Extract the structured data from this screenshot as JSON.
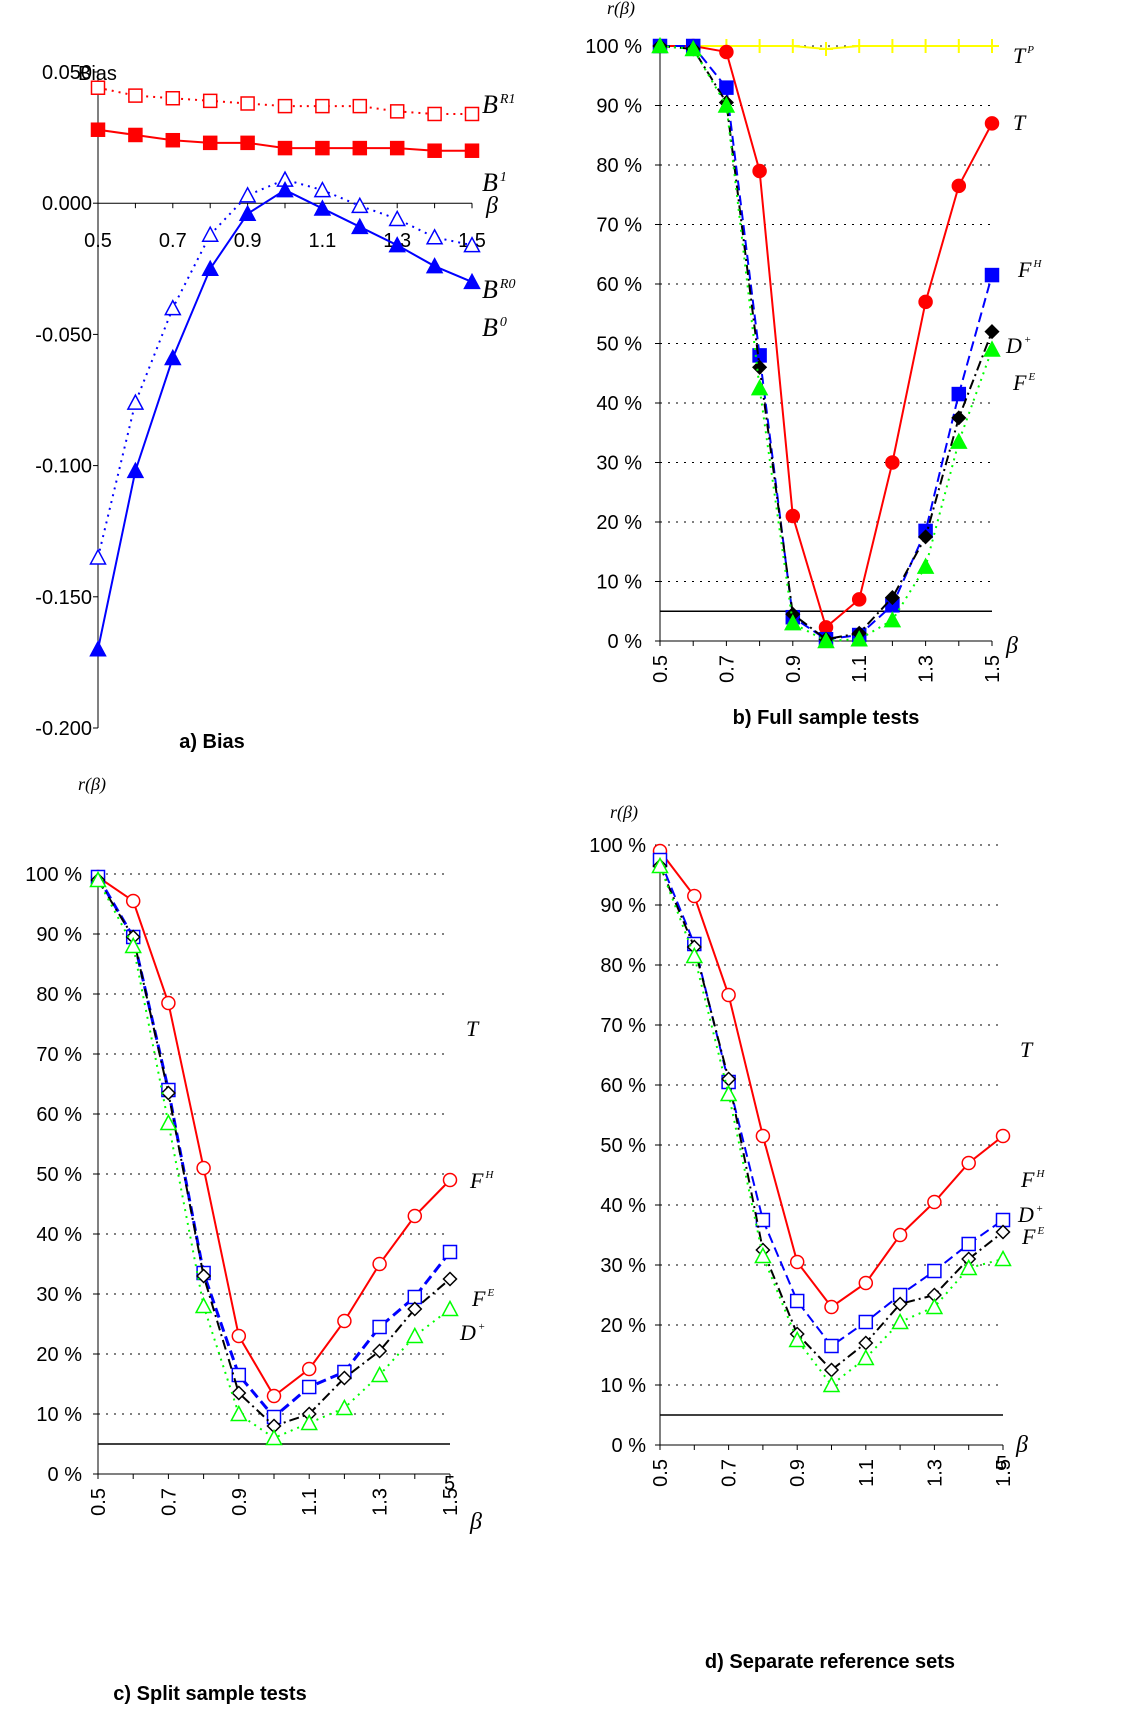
{
  "chart_data": [
    {
      "type": "line",
      "panel": "a",
      "caption": "a) Bias",
      "ylabel": "Bias",
      "xlabel": "β",
      "x": [
        0.5,
        0.6,
        0.7,
        0.8,
        0.9,
        1.0,
        1.1,
        1.2,
        1.3,
        1.4,
        1.5
      ],
      "x_tick_labels": [
        "0.5",
        "0.7",
        "0.9",
        "1.1",
        "1.3",
        "1.5"
      ],
      "x_tick_values": [
        0.5,
        0.7,
        0.9,
        1.1,
        1.3,
        1.5
      ],
      "y_tick_labels": [
        "0.050",
        "0.000",
        "-0.050",
        "-0.100",
        "-0.150",
        "-0.200"
      ],
      "y_tick_values": [
        0.05,
        0.0,
        -0.05,
        -0.1,
        -0.15,
        -0.2
      ],
      "xlim": [
        0.5,
        1.5
      ],
      "ylim": [
        -0.2,
        0.05
      ],
      "grid": false,
      "reference_lines": [],
      "series": [
        {
          "name": "B^R1",
          "label_main": "B",
          "label_sup": "R1",
          "color": "#ff0000",
          "marker": "square-open",
          "dash": "dotted",
          "values": [
            0.044,
            0.041,
            0.04,
            0.039,
            0.038,
            0.037,
            0.037,
            0.037,
            0.035,
            0.034,
            0.034
          ]
        },
        {
          "name": "B^1",
          "label_main": "B",
          "label_sup": "1",
          "color": "#ff0000",
          "marker": "square",
          "dash": "solid",
          "values": [
            0.028,
            0.026,
            0.024,
            0.023,
            0.023,
            0.021,
            0.021,
            0.021,
            0.021,
            0.02,
            0.02
          ]
        },
        {
          "name": "B^R0",
          "label_main": "B",
          "label_sup": "R0",
          "color": "#0000ff",
          "marker": "triangle-open",
          "dash": "dotted",
          "values": [
            -0.135,
            -0.076,
            -0.04,
            -0.012,
            0.003,
            0.009,
            0.005,
            -0.001,
            -0.006,
            -0.013,
            -0.016
          ]
        },
        {
          "name": "B^0",
          "label_main": "B",
          "label_sup": "0",
          "color": "#0000ff",
          "marker": "triangle",
          "dash": "solid",
          "values": [
            -0.17,
            -0.102,
            -0.059,
            -0.025,
            -0.004,
            0.005,
            -0.002,
            -0.009,
            -0.016,
            -0.024,
            -0.03
          ]
        }
      ]
    },
    {
      "type": "line",
      "panel": "b",
      "caption": "b) Full sample tests",
      "ylabel": "r(β)",
      "xlabel": "β",
      "x": [
        0.5,
        0.6,
        0.7,
        0.8,
        0.9,
        1.0,
        1.1,
        1.2,
        1.3,
        1.4,
        1.5
      ],
      "x_tick_labels": [
        "0.5",
        "0.7",
        "0.9",
        "1.1",
        "1.3",
        "1.5"
      ],
      "x_tick_values": [
        0.5,
        0.7,
        0.9,
        1.1,
        1.3,
        1.5
      ],
      "y_tick_labels": [
        "100 %",
        "90 %",
        "80 %",
        "70 %",
        "60 %",
        "50 %",
        "40 %",
        "30 %",
        "20 %",
        "10 %",
        "0 %"
      ],
      "y_tick_values": [
        100,
        90,
        80,
        70,
        60,
        50,
        40,
        30,
        20,
        10,
        0
      ],
      "xlim": [
        0.5,
        1.5
      ],
      "ylim": [
        0,
        100
      ],
      "grid": true,
      "reference_lines": [
        5
      ],
      "series": [
        {
          "name": "T^P",
          "label_main": "T",
          "label_sup": "P",
          "color": "#ffff00",
          "marker": "plus",
          "dash": "solid",
          "values": [
            100,
            100,
            100,
            100,
            100,
            99.5,
            100,
            100,
            100,
            100,
            100
          ]
        },
        {
          "name": "T",
          "label_main": "T",
          "label_sup": "",
          "color": "#ff0000",
          "marker": "circle",
          "dash": "solid",
          "values": [
            100,
            100,
            99,
            79,
            21,
            2.3,
            7,
            30,
            57,
            76.5,
            87
          ]
        },
        {
          "name": "F^H",
          "label_main": "F",
          "label_sup": "H",
          "color": "#0000ff",
          "marker": "square",
          "dash": "dashed",
          "values": [
            100,
            100,
            93,
            48,
            4,
            0.3,
            1,
            6,
            18.5,
            41.5,
            61.5
          ]
        },
        {
          "name": "D^+",
          "label_main": "D",
          "label_sup": "+",
          "color": "#000000",
          "marker": "diamond",
          "dash": "dashdot",
          "values": [
            100,
            99.5,
            90.5,
            46,
            4.5,
            0.3,
            1.3,
            7.3,
            17.5,
            37.5,
            52
          ]
        },
        {
          "name": "F^E",
          "label_main": "F",
          "label_sup": "E",
          "color": "#00ff00",
          "marker": "triangle",
          "dash": "dotted",
          "values": [
            100,
            99.5,
            90,
            42.5,
            3,
            0,
            0.3,
            3.5,
            12.5,
            33.5,
            49
          ]
        }
      ]
    },
    {
      "type": "line",
      "panel": "c",
      "caption": "c) Split sample tests",
      "ylabel": "r(β)",
      "xlabel": "β",
      "extra_text": "5",
      "x": [
        0.5,
        0.6,
        0.7,
        0.8,
        0.9,
        1.0,
        1.1,
        1.2,
        1.3,
        1.4,
        1.5
      ],
      "x_tick_labels": [
        "0.5",
        "0.7",
        "0.9",
        "1.1",
        "1.3",
        "1.5"
      ],
      "x_tick_values": [
        0.5,
        0.7,
        0.9,
        1.1,
        1.3,
        1.5
      ],
      "y_tick_labels": [
        "100 %",
        "90 %",
        "80 %",
        "70 %",
        "60 %",
        "50 %",
        "40 %",
        "30 %",
        "20 %",
        "10 %",
        "0 %"
      ],
      "y_tick_values": [
        100,
        90,
        80,
        70,
        60,
        50,
        40,
        30,
        20,
        10,
        0
      ],
      "xlim": [
        0.5,
        1.5
      ],
      "ylim": [
        0,
        100
      ],
      "grid": true,
      "reference_lines": [
        5
      ],
      "series": [
        {
          "name": "T",
          "label_main": "T",
          "label_sup": "",
          "color": "#ff0000",
          "marker": "circle-open",
          "dash": "solid",
          "values": [
            99.5,
            95.5,
            78.5,
            51,
            23,
            13,
            17.5,
            25.5,
            35,
            43,
            49
          ]
        },
        {
          "name": "F^H",
          "label_main": "F",
          "label_sup": "H",
          "color": "#0000ff",
          "marker": "square-open",
          "dash": "dashed",
          "values": [
            99.5,
            89.5,
            64,
            33.5,
            16.5,
            9.5,
            14.5,
            17,
            24.5,
            29.5,
            37
          ]
        },
        {
          "name": "D^+",
          "label_main": "D",
          "label_sup": "+",
          "color": "#000000",
          "marker": "diamond-open",
          "dash": "dashdot",
          "values": [
            99,
            89.5,
            63.5,
            33,
            13.5,
            8,
            10,
            16,
            20.5,
            27.5,
            32.5
          ]
        },
        {
          "name": "F^E",
          "label_main": "F",
          "label_sup": "E",
          "color": "#00ff00",
          "marker": "triangle-open",
          "dash": "dotted",
          "values": [
            99,
            88,
            58.5,
            28,
            10,
            6,
            8.5,
            11,
            16.5,
            23,
            27.5
          ]
        }
      ]
    },
    {
      "type": "line",
      "panel": "d",
      "caption": "d) Separate reference sets",
      "ylabel": "r(β)",
      "xlabel": "β",
      "extra_text": "5",
      "x": [
        0.5,
        0.6,
        0.7,
        0.8,
        0.9,
        1.0,
        1.1,
        1.2,
        1.3,
        1.4,
        1.5
      ],
      "x_tick_labels": [
        "0.5",
        "0.7",
        "0.9",
        "1.1",
        "1.3",
        "1.5"
      ],
      "x_tick_values": [
        0.5,
        0.7,
        0.9,
        1.1,
        1.3,
        1.5
      ],
      "y_tick_labels": [
        "100 %",
        "90 %",
        "80 %",
        "70 %",
        "60 %",
        "50 %",
        "40 %",
        "30 %",
        "20 %",
        "10 %",
        "0 %"
      ],
      "y_tick_values": [
        100,
        90,
        80,
        70,
        60,
        50,
        40,
        30,
        20,
        10,
        0
      ],
      "xlim": [
        0.5,
        1.5
      ],
      "ylim": [
        0,
        100
      ],
      "grid": true,
      "reference_lines": [
        5
      ],
      "series": [
        {
          "name": "T",
          "label_main": "T",
          "label_sup": "",
          "color": "#ff0000",
          "marker": "circle-open",
          "dash": "solid",
          "values": [
            99,
            91.5,
            75,
            51.5,
            30.5,
            23,
            27,
            35,
            40.5,
            47,
            51.5
          ]
        },
        {
          "name": "F^H",
          "label_main": "F",
          "label_sup": "H",
          "color": "#0000ff",
          "marker": "square-open",
          "dash": "dashed",
          "values": [
            97.5,
            83.5,
            60.5,
            37.5,
            24,
            16.5,
            20.5,
            25,
            29,
            33.5,
            37.5
          ]
        },
        {
          "name": "D^+",
          "label_main": "D",
          "label_sup": "+",
          "color": "#000000",
          "marker": "diamond-open",
          "dash": "dashdot",
          "values": [
            96.5,
            83,
            61,
            32.5,
            18.5,
            12.5,
            17,
            23.5,
            25,
            31,
            35.5
          ]
        },
        {
          "name": "F^E",
          "label_main": "F",
          "label_sup": "E",
          "color": "#00ff00",
          "marker": "triangle-open",
          "dash": "dotted",
          "values": [
            96.5,
            81.5,
            58.5,
            31.5,
            17.5,
            10,
            14.5,
            20.5,
            23,
            29.5,
            31
          ]
        }
      ]
    }
  ]
}
